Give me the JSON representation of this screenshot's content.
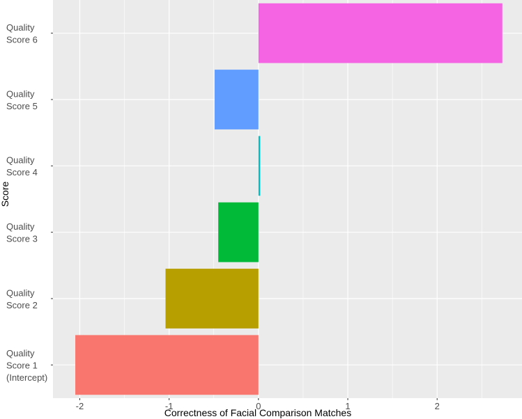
{
  "chart_data": {
    "type": "bar",
    "orientation": "horizontal",
    "xlabel": "Correctness of Facial Comparison Matches",
    "ylabel": "Score",
    "xlim": [
      -2.3,
      2.95
    ],
    "x_ticks": [
      -2,
      -1,
      0,
      1,
      2
    ],
    "x_tick_labels": [
      "-2",
      "-1",
      "0",
      "1",
      "2"
    ],
    "grid": true,
    "legend": "none",
    "categories": [
      {
        "label_lines": [
          "Quality",
          "Score 1",
          "(Intercept)"
        ],
        "value": -2.05,
        "color": "#F8766D"
      },
      {
        "label_lines": [
          "Quality",
          "Score 2"
        ],
        "value": -1.04,
        "color": "#B79F00"
      },
      {
        "label_lines": [
          "Quality",
          "Score 3"
        ],
        "value": -0.45,
        "color": "#00BA38"
      },
      {
        "label_lines": [
          "Quality",
          "Score 4"
        ],
        "value": 0.02,
        "color": "#00BFC4"
      },
      {
        "label_lines": [
          "Quality",
          "Score 5"
        ],
        "value": -0.49,
        "color": "#619CFF"
      },
      {
        "label_lines": [
          "Quality",
          "Score 6"
        ],
        "value": 2.73,
        "color": "#F564E3"
      }
    ],
    "panel_color": "#EBEBEB",
    "grid_color": "#FFFFFF"
  }
}
